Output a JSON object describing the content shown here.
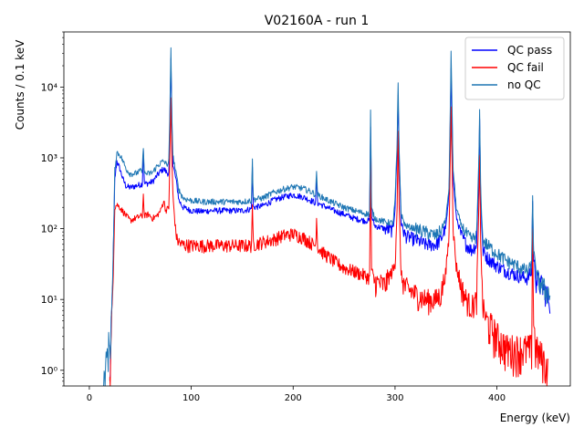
{
  "chart_data": {
    "type": "line",
    "title": "V02160A - run 1",
    "xlabel": "Energy (keV)",
    "ylabel": "Counts / 0.1 keV",
    "xlim": [
      -25,
      472
    ],
    "ylim": [
      0.6,
      60000
    ],
    "yscale": "log",
    "x_ticks": [
      0,
      100,
      200,
      300,
      400
    ],
    "x_tick_labels": [
      "0",
      "100",
      "200",
      "300",
      "400"
    ],
    "y_ticks": [
      1,
      10,
      100,
      1000,
      10000
    ],
    "y_tick_labels": [
      "10⁰",
      "10¹",
      "10²",
      "10³",
      "10⁴"
    ],
    "grid": false,
    "legend_position": "top-right",
    "series": [
      {
        "name": "QC pass",
        "color": "#0000ff",
        "points": [
          [
            20,
            0.6
          ],
          [
            21,
            2
          ],
          [
            23,
            20
          ],
          [
            25,
            500
          ],
          [
            27,
            900
          ],
          [
            30,
            700
          ],
          [
            33,
            500
          ],
          [
            36,
            400
          ],
          [
            40,
            380
          ],
          [
            45,
            400
          ],
          [
            50,
            420
          ],
          [
            52,
            430
          ],
          [
            53,
            1300
          ],
          [
            54,
            430
          ],
          [
            58,
            440
          ],
          [
            62,
            460
          ],
          [
            66,
            550
          ],
          [
            70,
            650
          ],
          [
            73,
            700
          ],
          [
            76,
            620
          ],
          [
            78,
            600
          ],
          [
            79,
            2500
          ],
          [
            80,
            25000
          ],
          [
            81,
            3000
          ],
          [
            82,
            800
          ],
          [
            85,
            500
          ],
          [
            88,
            250
          ],
          [
            92,
            200
          ],
          [
            100,
            180
          ],
          [
            110,
            175
          ],
          [
            120,
            180
          ],
          [
            130,
            180
          ],
          [
            140,
            180
          ],
          [
            150,
            180
          ],
          [
            159,
            190
          ],
          [
            160,
            700
          ],
          [
            161,
            200
          ],
          [
            170,
            210
          ],
          [
            180,
            250
          ],
          [
            190,
            280
          ],
          [
            200,
            300
          ],
          [
            210,
            280
          ],
          [
            220,
            240
          ],
          [
            222,
            230
          ],
          [
            223,
            500
          ],
          [
            224,
            230
          ],
          [
            230,
            210
          ],
          [
            240,
            180
          ],
          [
            250,
            160
          ],
          [
            260,
            140
          ],
          [
            270,
            130
          ],
          [
            275,
            130
          ],
          [
            276,
            3000
          ],
          [
            277,
            150
          ],
          [
            280,
            110
          ],
          [
            290,
            100
          ],
          [
            298,
            95
          ],
          [
            300,
            200
          ],
          [
            302,
            1200
          ],
          [
            303,
            8000
          ],
          [
            304,
            1000
          ],
          [
            306,
            120
          ],
          [
            310,
            80
          ],
          [
            320,
            70
          ],
          [
            330,
            60
          ],
          [
            340,
            60
          ],
          [
            345,
            70
          ],
          [
            350,
            110
          ],
          [
            353,
            300
          ],
          [
            354,
            2000
          ],
          [
            355,
            20000
          ],
          [
            356,
            3000
          ],
          [
            357,
            500
          ],
          [
            360,
            150
          ],
          [
            365,
            80
          ],
          [
            370,
            60
          ],
          [
            375,
            50
          ],
          [
            380,
            60
          ],
          [
            382,
            500
          ],
          [
            383,
            3500
          ],
          [
            384,
            300
          ],
          [
            386,
            50
          ],
          [
            390,
            40
          ],
          [
            400,
            30
          ],
          [
            410,
            25
          ],
          [
            420,
            22
          ],
          [
            430,
            20
          ],
          [
            434,
            25
          ],
          [
            435,
            250
          ],
          [
            436,
            40
          ],
          [
            438,
            20
          ],
          [
            445,
            15
          ],
          [
            452,
            10
          ]
        ]
      },
      {
        "name": "QC fail",
        "color": "#ff0000",
        "points": [
          [
            20,
            0.6
          ],
          [
            21,
            1.5
          ],
          [
            23,
            15
          ],
          [
            25,
            200
          ],
          [
            27,
            220
          ],
          [
            30,
            200
          ],
          [
            35,
            160
          ],
          [
            40,
            130
          ],
          [
            45,
            140
          ],
          [
            50,
            150
          ],
          [
            52,
            150
          ],
          [
            53,
            300
          ],
          [
            54,
            150
          ],
          [
            58,
            160
          ],
          [
            62,
            140
          ],
          [
            66,
            150
          ],
          [
            70,
            180
          ],
          [
            73,
            250
          ],
          [
            75,
            180
          ],
          [
            78,
            200
          ],
          [
            79,
            1000
          ],
          [
            80,
            7000
          ],
          [
            81,
            1000
          ],
          [
            82,
            300
          ],
          [
            84,
            120
          ],
          [
            86,
            70
          ],
          [
            90,
            60
          ],
          [
            100,
            58
          ],
          [
            120,
            58
          ],
          [
            140,
            58
          ],
          [
            159,
            58
          ],
          [
            160,
            200
          ],
          [
            161,
            60
          ],
          [
            170,
            65
          ],
          [
            180,
            70
          ],
          [
            190,
            80
          ],
          [
            200,
            85
          ],
          [
            210,
            75
          ],
          [
            220,
            60
          ],
          [
            222,
            58
          ],
          [
            223,
            150
          ],
          [
            224,
            55
          ],
          [
            230,
            45
          ],
          [
            240,
            35
          ],
          [
            250,
            28
          ],
          [
            260,
            25
          ],
          [
            270,
            22
          ],
          [
            275,
            20
          ],
          [
            276,
            1000
          ],
          [
            277,
            25
          ],
          [
            280,
            18
          ],
          [
            290,
            16
          ],
          [
            300,
            30
          ],
          [
            302,
            200
          ],
          [
            303,
            2500
          ],
          [
            304,
            200
          ],
          [
            306,
            22
          ],
          [
            310,
            15
          ],
          [
            320,
            12
          ],
          [
            330,
            10
          ],
          [
            340,
            10
          ],
          [
            345,
            12
          ],
          [
            350,
            25
          ],
          [
            353,
            80
          ],
          [
            354,
            700
          ],
          [
            355,
            5000
          ],
          [
            356,
            800
          ],
          [
            357,
            100
          ],
          [
            360,
            30
          ],
          [
            365,
            15
          ],
          [
            370,
            10
          ],
          [
            375,
            8
          ],
          [
            380,
            10
          ],
          [
            382,
            150
          ],
          [
            383,
            1000
          ],
          [
            384,
            80
          ],
          [
            386,
            8
          ],
          [
            390,
            5
          ],
          [
            400,
            3
          ],
          [
            410,
            2
          ],
          [
            420,
            2
          ],
          [
            430,
            2
          ],
          [
            434,
            2
          ],
          [
            435,
            100
          ],
          [
            436,
            5
          ],
          [
            438,
            2
          ],
          [
            445,
            1.5
          ],
          [
            450,
            1
          ]
        ]
      },
      {
        "name": "no QC",
        "color": "#1f77b4",
        "points": [
          [
            14,
            0.6
          ],
          [
            16,
            1
          ],
          [
            18,
            2
          ],
          [
            20,
            2.5
          ],
          [
            21,
            3
          ],
          [
            23,
            20
          ],
          [
            25,
            700
          ],
          [
            27,
            1200
          ],
          [
            30,
            1100
          ],
          [
            33,
            900
          ],
          [
            36,
            700
          ],
          [
            40,
            600
          ],
          [
            45,
            600
          ],
          [
            50,
            650
          ],
          [
            52,
            650
          ],
          [
            53,
            1500
          ],
          [
            54,
            600
          ],
          [
            58,
            600
          ],
          [
            62,
            620
          ],
          [
            66,
            750
          ],
          [
            70,
            850
          ],
          [
            73,
            900
          ],
          [
            76,
            800
          ],
          [
            78,
            900
          ],
          [
            79,
            4000
          ],
          [
            80,
            33000
          ],
          [
            81,
            4000
          ],
          [
            82,
            1100
          ],
          [
            85,
            600
          ],
          [
            88,
            350
          ],
          [
            92,
            270
          ],
          [
            100,
            250
          ],
          [
            110,
            240
          ],
          [
            120,
            240
          ],
          [
            130,
            240
          ],
          [
            140,
            240
          ],
          [
            150,
            240
          ],
          [
            159,
            250
          ],
          [
            160,
            900
          ],
          [
            161,
            260
          ],
          [
            170,
            270
          ],
          [
            180,
            320
          ],
          [
            190,
            360
          ],
          [
            200,
            390
          ],
          [
            210,
            370
          ],
          [
            220,
            320
          ],
          [
            222,
            300
          ],
          [
            223,
            650
          ],
          [
            224,
            300
          ],
          [
            230,
            270
          ],
          [
            240,
            230
          ],
          [
            250,
            200
          ],
          [
            260,
            180
          ],
          [
            270,
            165
          ],
          [
            275,
            160
          ],
          [
            276,
            4500
          ],
          [
            277,
            190
          ],
          [
            280,
            140
          ],
          [
            290,
            125
          ],
          [
            298,
            120
          ],
          [
            300,
            250
          ],
          [
            302,
            1500
          ],
          [
            303,
            11000
          ],
          [
            304,
            1300
          ],
          [
            306,
            160
          ],
          [
            310,
            110
          ],
          [
            320,
            100
          ],
          [
            330,
            90
          ],
          [
            340,
            80
          ],
          [
            345,
            95
          ],
          [
            350,
            140
          ],
          [
            353,
            400
          ],
          [
            354,
            3000
          ],
          [
            355,
            32000
          ],
          [
            356,
            4000
          ],
          [
            357,
            700
          ],
          [
            360,
            200
          ],
          [
            365,
            110
          ],
          [
            370,
            85
          ],
          [
            375,
            70
          ],
          [
            380,
            80
          ],
          [
            382,
            700
          ],
          [
            383,
            4400
          ],
          [
            384,
            400
          ],
          [
            386,
            70
          ],
          [
            390,
            60
          ],
          [
            400,
            45
          ],
          [
            410,
            35
          ],
          [
            420,
            30
          ],
          [
            430,
            25
          ],
          [
            434,
            30
          ],
          [
            435,
            300
          ],
          [
            436,
            50
          ],
          [
            438,
            25
          ],
          [
            445,
            15
          ],
          [
            452,
            12
          ]
        ]
      }
    ]
  }
}
